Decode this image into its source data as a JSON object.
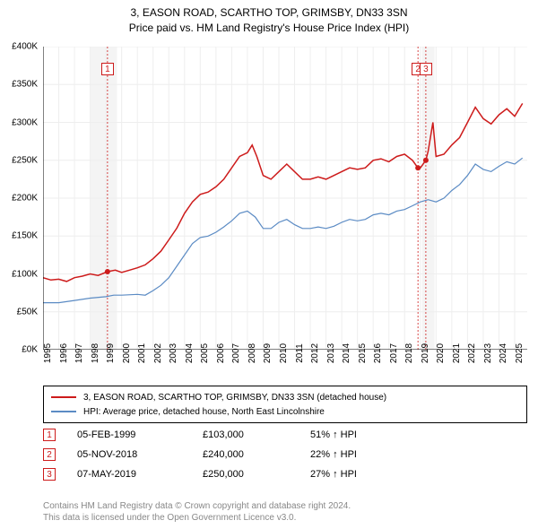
{
  "title": {
    "line1": "3, EASON ROAD, SCARTHO TOP, GRIMSBY, DN33 3SN",
    "line2": "Price paid vs. HM Land Registry's House Price Index (HPI)"
  },
  "chart": {
    "type": "line",
    "background_color": "#ffffff",
    "grid_color": "#eeeeee",
    "shaded_band_color": "#f4f4f4",
    "axis_color": "#000000",
    "xlim": [
      1995,
      2025.8
    ],
    "ylim": [
      0,
      400000
    ],
    "yticks": [
      0,
      50000,
      100000,
      150000,
      200000,
      250000,
      300000,
      350000,
      400000
    ],
    "ytick_labels": [
      "£0K",
      "£50K",
      "£100K",
      "£150K",
      "£200K",
      "£250K",
      "£300K",
      "£350K",
      "£400K"
    ],
    "xticks": [
      1995,
      1996,
      1997,
      1998,
      1999,
      2000,
      2001,
      2002,
      2003,
      2004,
      2005,
      2006,
      2007,
      2008,
      2009,
      2010,
      2011,
      2012,
      2013,
      2014,
      2015,
      2016,
      2017,
      2018,
      2019,
      2020,
      2021,
      2022,
      2023,
      2024,
      2025
    ],
    "shaded_bands": [
      [
        1998.0,
        1999.7
      ],
      [
        2019.1,
        2019.9
      ]
    ],
    "series": [
      {
        "name": "property_price",
        "label": "3, EASON ROAD, SCARTHO TOP, GRIMSBY, DN33 3SN (detached house)",
        "color": "#cd1b1b",
        "width": 1.5,
        "points": [
          [
            1995.0,
            95000
          ],
          [
            1995.5,
            92000
          ],
          [
            1996.0,
            93000
          ],
          [
            1996.5,
            90000
          ],
          [
            1997.0,
            95000
          ],
          [
            1997.5,
            97000
          ],
          [
            1998.0,
            100000
          ],
          [
            1998.5,
            98000
          ],
          [
            1999.1,
            103000
          ],
          [
            1999.6,
            105000
          ],
          [
            2000.0,
            102000
          ],
          [
            2000.5,
            105000
          ],
          [
            2001.0,
            108000
          ],
          [
            2001.5,
            112000
          ],
          [
            2002.0,
            120000
          ],
          [
            2002.5,
            130000
          ],
          [
            2003.0,
            145000
          ],
          [
            2003.5,
            160000
          ],
          [
            2004.0,
            180000
          ],
          [
            2004.5,
            195000
          ],
          [
            2005.0,
            205000
          ],
          [
            2005.5,
            208000
          ],
          [
            2006.0,
            215000
          ],
          [
            2006.5,
            225000
          ],
          [
            2007.0,
            240000
          ],
          [
            2007.5,
            255000
          ],
          [
            2008.0,
            260000
          ],
          [
            2008.3,
            270000
          ],
          [
            2008.6,
            255000
          ],
          [
            2009.0,
            230000
          ],
          [
            2009.5,
            225000
          ],
          [
            2010.0,
            235000
          ],
          [
            2010.5,
            245000
          ],
          [
            2011.0,
            235000
          ],
          [
            2011.5,
            225000
          ],
          [
            2012.0,
            225000
          ],
          [
            2012.5,
            228000
          ],
          [
            2013.0,
            225000
          ],
          [
            2013.5,
            230000
          ],
          [
            2014.0,
            235000
          ],
          [
            2014.5,
            240000
          ],
          [
            2015.0,
            238000
          ],
          [
            2015.5,
            240000
          ],
          [
            2016.0,
            250000
          ],
          [
            2016.5,
            252000
          ],
          [
            2017.0,
            248000
          ],
          [
            2017.5,
            255000
          ],
          [
            2018.0,
            258000
          ],
          [
            2018.5,
            250000
          ],
          [
            2018.85,
            240000
          ],
          [
            2019.0,
            240000
          ],
          [
            2019.35,
            250000
          ],
          [
            2019.5,
            262000
          ],
          [
            2019.8,
            300000
          ],
          [
            2020.0,
            255000
          ],
          [
            2020.5,
            258000
          ],
          [
            2021.0,
            270000
          ],
          [
            2021.5,
            280000
          ],
          [
            2022.0,
            300000
          ],
          [
            2022.5,
            320000
          ],
          [
            2023.0,
            305000
          ],
          [
            2023.5,
            298000
          ],
          [
            2024.0,
            310000
          ],
          [
            2024.5,
            318000
          ],
          [
            2025.0,
            308000
          ],
          [
            2025.5,
            325000
          ]
        ]
      },
      {
        "name": "hpi",
        "label": "HPI: Average price, detached house, North East Lincolnshire",
        "color": "#5b8bc4",
        "width": 1.2,
        "points": [
          [
            1995.0,
            62000
          ],
          [
            1996.0,
            62000
          ],
          [
            1997.0,
            65000
          ],
          [
            1998.0,
            68000
          ],
          [
            1999.0,
            70000
          ],
          [
            1999.5,
            72000
          ],
          [
            2000.0,
            72000
          ],
          [
            2001.0,
            73000
          ],
          [
            2001.5,
            72000
          ],
          [
            2002.0,
            78000
          ],
          [
            2002.5,
            85000
          ],
          [
            2003.0,
            95000
          ],
          [
            2003.5,
            110000
          ],
          [
            2004.0,
            125000
          ],
          [
            2004.5,
            140000
          ],
          [
            2005.0,
            148000
          ],
          [
            2005.5,
            150000
          ],
          [
            2006.0,
            155000
          ],
          [
            2006.5,
            162000
          ],
          [
            2007.0,
            170000
          ],
          [
            2007.5,
            180000
          ],
          [
            2008.0,
            183000
          ],
          [
            2008.5,
            175000
          ],
          [
            2009.0,
            160000
          ],
          [
            2009.5,
            160000
          ],
          [
            2010.0,
            168000
          ],
          [
            2010.5,
            172000
          ],
          [
            2011.0,
            165000
          ],
          [
            2011.5,
            160000
          ],
          [
            2012.0,
            160000
          ],
          [
            2012.5,
            162000
          ],
          [
            2013.0,
            160000
          ],
          [
            2013.5,
            163000
          ],
          [
            2014.0,
            168000
          ],
          [
            2014.5,
            172000
          ],
          [
            2015.0,
            170000
          ],
          [
            2015.5,
            172000
          ],
          [
            2016.0,
            178000
          ],
          [
            2016.5,
            180000
          ],
          [
            2017.0,
            178000
          ],
          [
            2017.5,
            183000
          ],
          [
            2018.0,
            185000
          ],
          [
            2018.5,
            190000
          ],
          [
            2019.0,
            195000
          ],
          [
            2019.5,
            198000
          ],
          [
            2020.0,
            195000
          ],
          [
            2020.5,
            200000
          ],
          [
            2021.0,
            210000
          ],
          [
            2021.5,
            218000
          ],
          [
            2022.0,
            230000
          ],
          [
            2022.5,
            245000
          ],
          [
            2023.0,
            238000
          ],
          [
            2023.5,
            235000
          ],
          [
            2024.0,
            242000
          ],
          [
            2024.5,
            248000
          ],
          [
            2025.0,
            245000
          ],
          [
            2025.5,
            253000
          ]
        ]
      }
    ],
    "sale_markers": [
      {
        "n": "1",
        "x": 1999.1,
        "y": 103000
      },
      {
        "n": "2",
        "x": 2018.85,
        "y": 240000
      },
      {
        "n": "3",
        "x": 2019.35,
        "y": 250000
      }
    ],
    "marker_vline_color": "#cd1b1b",
    "marker_dot_color": "#cd1b1b",
    "marker_dot_radius": 3
  },
  "legend": {
    "items": [
      {
        "color": "#cd1b1b",
        "label": "3, EASON ROAD, SCARTHO TOP, GRIMSBY, DN33 3SN (detached house)"
      },
      {
        "color": "#5b8bc4",
        "label": "HPI: Average price, detached house, North East Lincolnshire"
      }
    ]
  },
  "sales": [
    {
      "n": "1",
      "date": "05-FEB-1999",
      "price": "£103,000",
      "pct": "51% ↑ HPI"
    },
    {
      "n": "2",
      "date": "05-NOV-2018",
      "price": "£240,000",
      "pct": "22% ↑ HPI"
    },
    {
      "n": "3",
      "date": "07-MAY-2019",
      "price": "£250,000",
      "pct": "27% ↑ HPI"
    }
  ],
  "footer": {
    "line1": "Contains HM Land Registry data © Crown copyright and database right 2024.",
    "line2": "This data is licensed under the Open Government Licence v3.0."
  }
}
